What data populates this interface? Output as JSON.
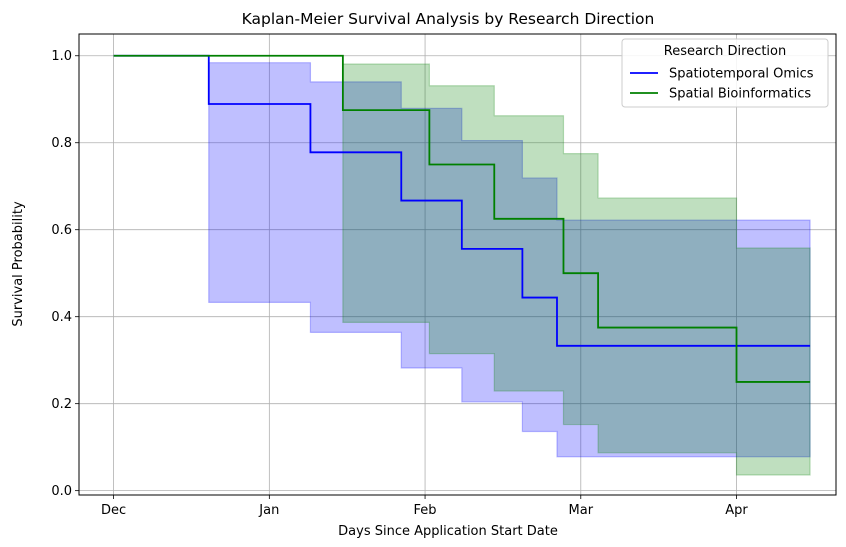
{
  "chart_data": {
    "type": "line",
    "title": "Kaplan-Meier Survival Analysis by Research Direction",
    "xlabel": "Days Since Application Start Date",
    "ylabel": "Survival Probability",
    "xlim": [
      -8,
      167
    ],
    "ylim": [
      -0.01,
      1.05
    ],
    "grid": true,
    "x_ticks": [
      {
        "value": 0,
        "label": "Dec"
      },
      {
        "value": 36,
        "label": "Jan"
      },
      {
        "value": 72,
        "label": "Feb"
      },
      {
        "value": 108,
        "label": "Mar"
      },
      {
        "value": 144,
        "label": "Apr"
      }
    ],
    "y_ticks": [
      {
        "value": 0.0,
        "label": "0.0"
      },
      {
        "value": 0.2,
        "label": "0.2"
      },
      {
        "value": 0.4,
        "label": "0.4"
      },
      {
        "value": 0.6,
        "label": "0.6"
      },
      {
        "value": 0.8,
        "label": "0.8"
      },
      {
        "value": 1.0,
        "label": "1.0"
      }
    ],
    "legend": {
      "title": "Research Direction",
      "position": "top-right"
    },
    "series": [
      {
        "name": "Spatiotemporal Omics",
        "color": "#0000ff",
        "band_color": "#0000ff",
        "steps": [
          {
            "x": 0,
            "y": 1.0,
            "lo": null,
            "hi": null
          },
          {
            "x": 22,
            "y": 0.889,
            "lo": 0.433,
            "hi": 0.984
          },
          {
            "x": 45.5,
            "y": 0.778,
            "lo": 0.364,
            "hi": 0.94
          },
          {
            "x": 66.5,
            "y": 0.667,
            "lo": 0.282,
            "hi": 0.879
          },
          {
            "x": 80.5,
            "y": 0.556,
            "lo": 0.204,
            "hi": 0.805
          },
          {
            "x": 94.5,
            "y": 0.444,
            "lo": 0.136,
            "hi": 0.719
          },
          {
            "x": 102.5,
            "y": 0.333,
            "lo": 0.078,
            "hi": 0.622
          }
        ],
        "x_end": 161
      },
      {
        "name": "Spatial Bioinformatics",
        "color": "#008000",
        "band_color": "#008000",
        "steps": [
          {
            "x": 0,
            "y": 1.0,
            "lo": null,
            "hi": null
          },
          {
            "x": 53,
            "y": 0.875,
            "lo": 0.387,
            "hi": 0.981
          },
          {
            "x": 73,
            "y": 0.75,
            "lo": 0.315,
            "hi": 0.931
          },
          {
            "x": 88,
            "y": 0.625,
            "lo": 0.229,
            "hi": 0.862
          },
          {
            "x": 104,
            "y": 0.5,
            "lo": 0.152,
            "hi": 0.775
          },
          {
            "x": 112,
            "y": 0.375,
            "lo": 0.087,
            "hi": 0.673
          },
          {
            "x": 144,
            "y": 0.25,
            "lo": 0.036,
            "hi": 0.558
          }
        ],
        "x_end": 161
      }
    ]
  }
}
